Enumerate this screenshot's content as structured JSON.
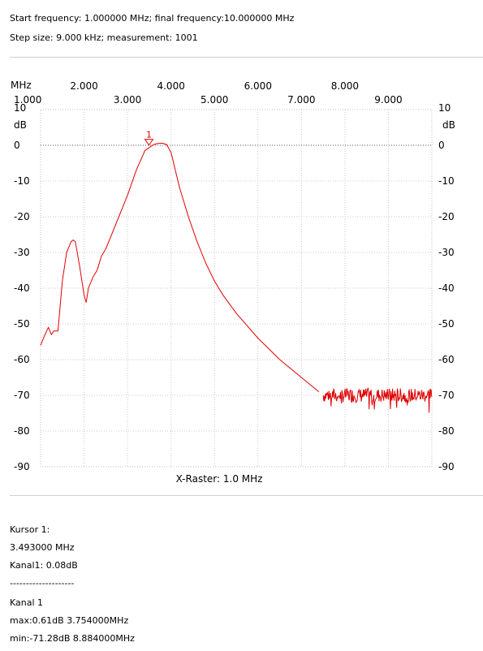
{
  "header": {
    "line1": "Start frequency: 1.000000 MHz; final frequency:10.000000 MHz",
    "line2": "Step size: 9.000 kHz; measurement: 1001"
  },
  "chart_data": {
    "type": "line",
    "xunit": "MHz",
    "yunit_left": "dB",
    "yunit_right": "dB",
    "xlabel": "X-Raster: 1.0 MHz",
    "xlim": [
      1.0,
      10.0
    ],
    "ylim": [
      -90,
      10
    ],
    "x_ticks_top": [
      "2.000",
      "4.000",
      "6.000",
      "8.000"
    ],
    "x_ticks_bottom": [
      "1.000",
      "3.000",
      "5.000",
      "7.000",
      "9.000"
    ],
    "y_ticks": [
      "10",
      "0",
      "-10",
      "-20",
      "-30",
      "-40",
      "-50",
      "-60",
      "-70",
      "-80",
      "-90"
    ],
    "reference_level": 0,
    "line_color": "#e00000",
    "series": [
      {
        "x": [
          1.0,
          1.1,
          1.18,
          1.25,
          1.3,
          1.4,
          1.5,
          1.6,
          1.7,
          1.75,
          1.8,
          1.9,
          2.0,
          2.05,
          2.1,
          2.2,
          2.3,
          2.35,
          2.4,
          2.5,
          2.6,
          2.8,
          3.0,
          3.2,
          3.4,
          3.6,
          3.7,
          3.8,
          3.9,
          4.0,
          4.1,
          4.2,
          4.4,
          4.6,
          4.8,
          5.0,
          5.2,
          5.5,
          6.0,
          6.5,
          7.0,
          7.2,
          7.4,
          7.6,
          7.8,
          8.0,
          8.2,
          8.4,
          8.6,
          8.8,
          9.0,
          9.2,
          9.4,
          9.6,
          9.8,
          10.0
        ],
        "y": [
          -56,
          -53,
          -51,
          -53,
          -52,
          -52,
          -38,
          -30,
          -27,
          -26.5,
          -27,
          -34,
          -42,
          -44,
          -40,
          -37,
          -35,
          -33,
          -31,
          -29,
          -26,
          -20,
          -14,
          -7,
          -1.5,
          0.2,
          0.5,
          0.6,
          0.2,
          -2,
          -7,
          -12,
          -20,
          -27,
          -33,
          -38,
          -42,
          -47,
          -54,
          -60,
          -65,
          -67,
          -69,
          -69,
          -69.5,
          -70,
          -70,
          -70.5,
          -70,
          -70,
          -70,
          -70,
          -70,
          -70,
          -70,
          -70
        ]
      }
    ],
    "noise_band": {
      "from_x": 7.5,
      "to_x": 10.0,
      "center": -70,
      "spread": 4
    },
    "marker": {
      "label": "1",
      "x": 3.493,
      "y": 0.08
    }
  },
  "info": {
    "cursor_title": "Kursor 1:",
    "cursor_freq": "3.493000 MHz",
    "cursor_value": "Kanal1: 0.08dB",
    "separator": "--------------------",
    "channel_title": "Kanal 1",
    "max_line": "max:0.61dB 3.754000MHz",
    "min_line": "min:-71.28dB 8.884000MHz"
  }
}
